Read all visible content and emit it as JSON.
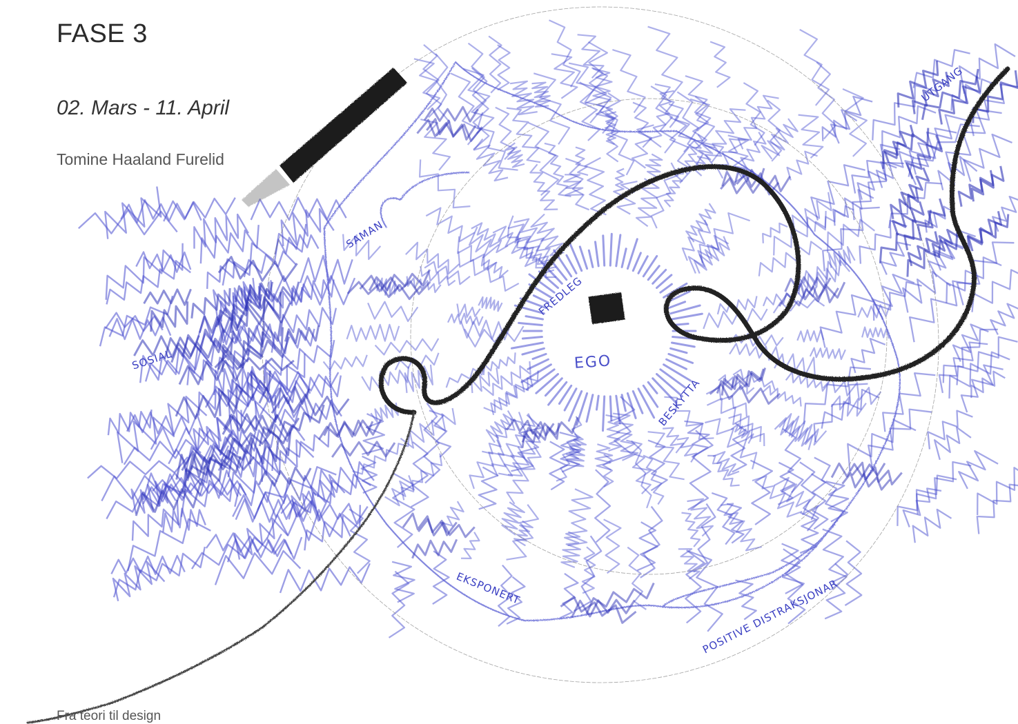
{
  "header": {
    "title": "FASE 3",
    "date_range": "02. Mars - 11. April",
    "author": "Tomine Haaland Furelid"
  },
  "footer": {
    "text": "Fra teori til design"
  },
  "diagram": {
    "labels": {
      "center": "EGO",
      "fredleg": "FREDLEG",
      "beskytta": "BESKYTTA",
      "saman": "SAMAN",
      "sosial": "SOSIAL",
      "eksponert": "EKSPONERT",
      "positive_distraksjonar": "POSITIVE DISTRAKSJONAR",
      "utgang": "UTGANG"
    },
    "colors": {
      "scribble": "#4a4fd0",
      "scribble_dark": "#2f34b8",
      "path": "#222222",
      "guide_circles": "#888888"
    }
  }
}
